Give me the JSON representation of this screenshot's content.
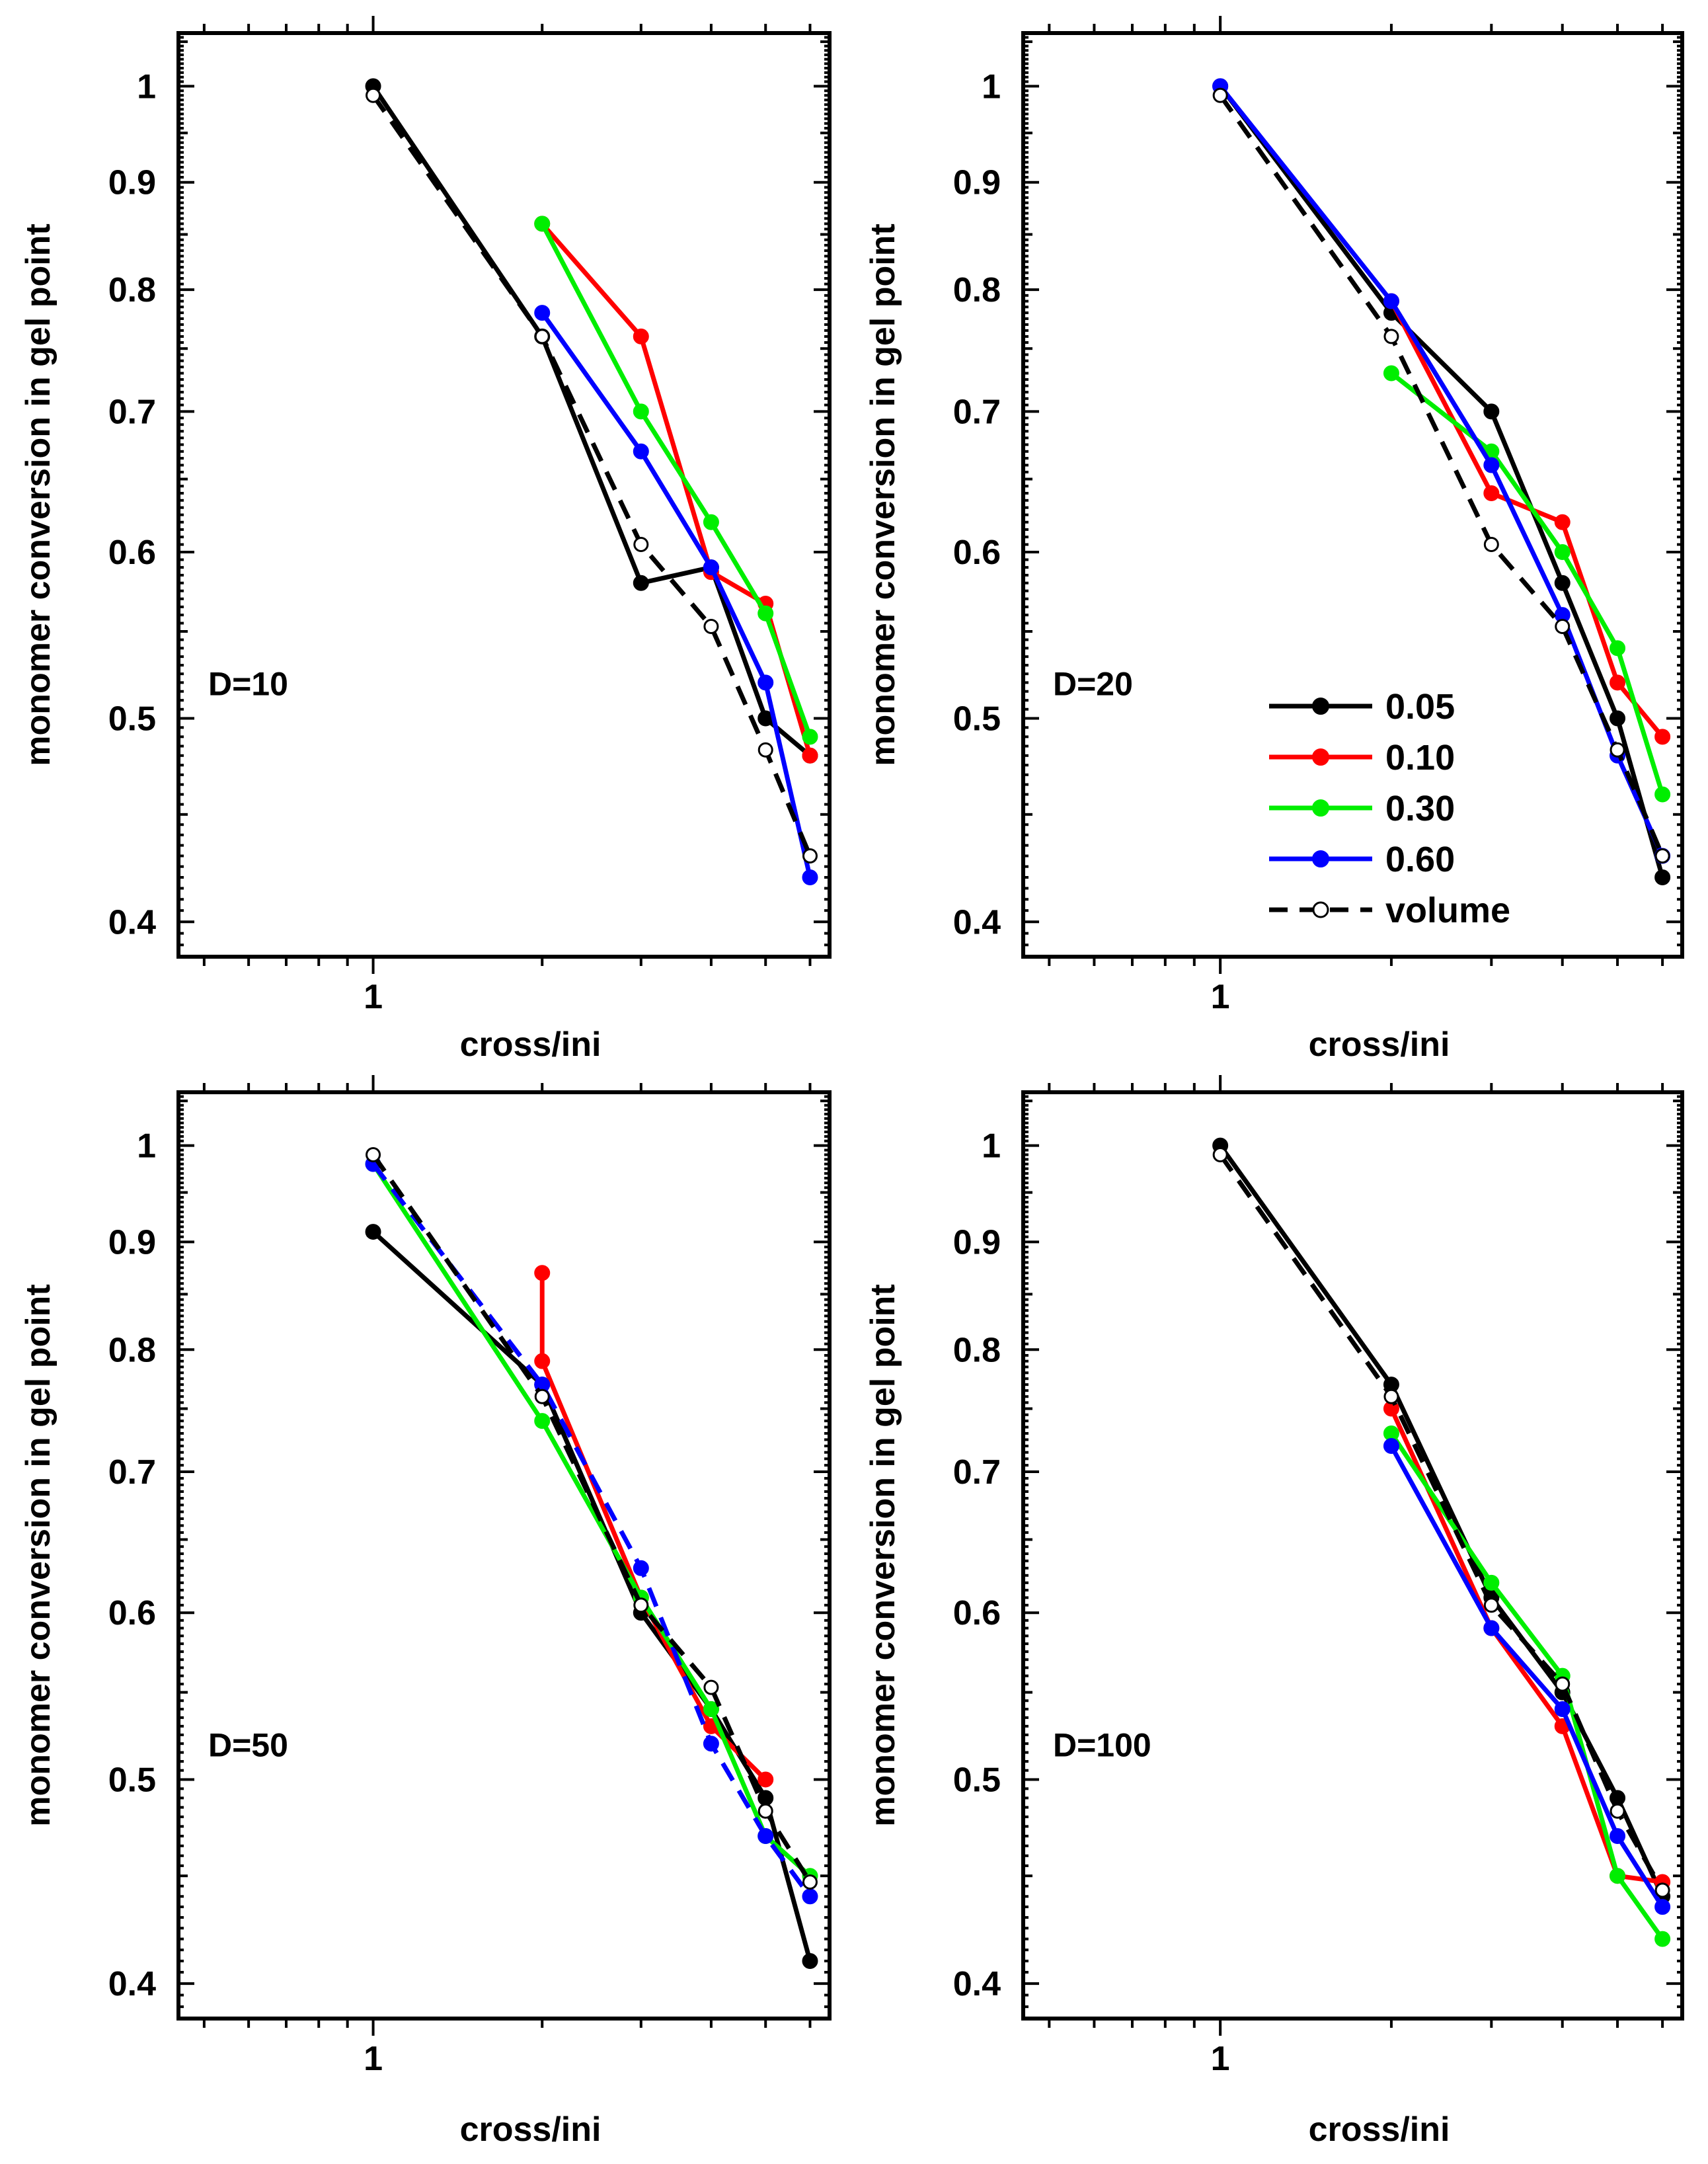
{
  "chart_data": [
    {
      "type": "line",
      "panel_label": "D=10",
      "xlabel": "cross/ini",
      "ylabel": "monomer conversion in gel point",
      "xscale": "log",
      "yscale": "log",
      "xlim": [
        0.45,
        6.5
      ],
      "ylim": [
        0.385,
        1.06
      ],
      "x_ticks": [
        "1"
      ],
      "y_ticks": [
        "1",
        "0.9",
        "0.8",
        "0.7",
        "0.6",
        "0.5",
        "0.4"
      ],
      "series": [
        {
          "name": "0.05",
          "x": [
            1,
            2,
            3,
            4,
            5,
            6
          ],
          "y": [
            1.0,
            0.76,
            0.58,
            0.59,
            0.5,
            0.48
          ]
        },
        {
          "name": "0.10",
          "x": [
            2,
            3,
            4,
            5,
            6
          ],
          "y": [
            0.86,
            0.76,
            0.587,
            0.567,
            0.48
          ]
        },
        {
          "name": "0.30",
          "x": [
            2,
            3,
            4,
            5,
            6
          ],
          "y": [
            0.86,
            0.7,
            0.62,
            0.561,
            0.49
          ]
        },
        {
          "name": "0.60",
          "x": [
            2,
            3,
            4,
            5,
            6
          ],
          "y": [
            0.78,
            0.67,
            0.59,
            0.52,
            0.42
          ]
        },
        {
          "name": "volume",
          "x": [
            1,
            2,
            3,
            4,
            5,
            6
          ],
          "y": [
            0.99,
            0.76,
            0.605,
            0.553,
            0.483,
            0.43
          ]
        }
      ]
    },
    {
      "type": "line",
      "panel_label": "D=20",
      "xlabel": "cross/ini",
      "ylabel": "monomer conversion in gel point",
      "xscale": "log",
      "yscale": "log",
      "xlim": [
        0.45,
        6.5
      ],
      "ylim": [
        0.385,
        1.06
      ],
      "x_ticks": [
        "1"
      ],
      "y_ticks": [
        "1",
        "0.9",
        "0.8",
        "0.7",
        "0.6",
        "0.5",
        "0.4"
      ],
      "series": [
        {
          "name": "0.05",
          "x": [
            1,
            2,
            3,
            4,
            5,
            6
          ],
          "y": [
            1.0,
            0.78,
            0.7,
            0.58,
            0.5,
            0.42
          ]
        },
        {
          "name": "0.10",
          "x": [
            2,
            3,
            4,
            5,
            6
          ],
          "y": [
            0.79,
            0.64,
            0.62,
            0.52,
            0.49
          ]
        },
        {
          "name": "0.30",
          "x": [
            2,
            3,
            4,
            5,
            6
          ],
          "y": [
            0.73,
            0.67,
            0.6,
            0.54,
            0.46
          ]
        },
        {
          "name": "0.60",
          "x": [
            1,
            2,
            3,
            4,
            5,
            6
          ],
          "y": [
            1.0,
            0.79,
            0.66,
            0.56,
            0.48,
            0.43
          ]
        },
        {
          "name": "volume",
          "x": [
            1,
            2,
            3,
            4,
            5,
            6
          ],
          "y": [
            0.99,
            0.76,
            0.605,
            0.553,
            0.483,
            0.43
          ]
        }
      ],
      "legend": {
        "position": "bottom-right",
        "entries": [
          "0.05",
          "0.10",
          "0.30",
          "0.60",
          "volume"
        ]
      }
    },
    {
      "type": "line",
      "panel_label": "D=50",
      "xlabel": "cross/ini",
      "ylabel": "monomer conversion in gel point",
      "xscale": "log",
      "yscale": "log",
      "xlim": [
        0.45,
        6.5
      ],
      "ylim": [
        0.385,
        1.06
      ],
      "x_ticks": [
        "1"
      ],
      "y_ticks": [
        "1",
        "0.9",
        "0.8",
        "0.7",
        "0.6",
        "0.5",
        "0.4"
      ],
      "series": [
        {
          "name": "0.05",
          "x": [
            1,
            2,
            3,
            4,
            5,
            6
          ],
          "y": [
            0.91,
            0.77,
            0.6,
            0.54,
            0.49,
            0.41
          ]
        },
        {
          "name": "0.10",
          "x": [
            2,
            2,
            3,
            4,
            5
          ],
          "y": [
            0.87,
            0.79,
            0.61,
            0.53,
            0.5
          ]
        },
        {
          "name": "0.30",
          "x": [
            1,
            2,
            3,
            4,
            5,
            6
          ],
          "y": [
            0.98,
            0.74,
            0.61,
            0.54,
            0.47,
            0.45
          ]
        },
        {
          "name": "0.60",
          "x": [
            1,
            2,
            3,
            4,
            5,
            6
          ],
          "y": [
            0.98,
            0.77,
            0.63,
            0.52,
            0.47,
            0.44
          ]
        },
        {
          "name": "volume",
          "x": [
            1,
            2,
            3,
            4,
            5,
            6
          ],
          "y": [
            0.99,
            0.76,
            0.605,
            0.553,
            0.483,
            0.447
          ]
        }
      ]
    },
    {
      "type": "line",
      "panel_label": "D=100",
      "xlabel": "cross/ini",
      "ylabel": "monomer conversion in gel point",
      "xscale": "log",
      "yscale": "log",
      "xlim": [
        0.45,
        6.5
      ],
      "ylim": [
        0.385,
        1.06
      ],
      "x_ticks": [
        "1"
      ],
      "y_ticks": [
        "1",
        "0.9",
        "0.8",
        "0.7",
        "0.6",
        "0.5",
        "0.4"
      ],
      "series": [
        {
          "name": "0.05",
          "x": [
            1,
            2,
            3,
            4,
            5,
            6
          ],
          "y": [
            1.0,
            0.77,
            0.61,
            0.55,
            0.49,
            0.44
          ]
        },
        {
          "name": "0.10",
          "x": [
            2,
            3,
            4,
            5,
            6
          ],
          "y": [
            0.75,
            0.59,
            0.53,
            0.45,
            0.447
          ]
        },
        {
          "name": "0.30",
          "x": [
            2,
            3,
            4,
            5,
            6
          ],
          "y": [
            0.73,
            0.62,
            0.56,
            0.45,
            0.42
          ]
        },
        {
          "name": "0.60",
          "x": [
            2,
            3,
            4,
            5,
            6
          ],
          "y": [
            0.72,
            0.59,
            0.54,
            0.47,
            0.435
          ]
        },
        {
          "name": "volume",
          "x": [
            1,
            2,
            3,
            4,
            5,
            6
          ],
          "y": [
            0.99,
            0.76,
            0.605,
            0.555,
            0.483,
            0.443
          ]
        }
      ]
    }
  ],
  "colors": {
    "0.05": "#000000",
    "0.10": "#ff0000",
    "0.30": "#00ee00",
    "0.60": "#0000ff",
    "volume": "#000000"
  }
}
